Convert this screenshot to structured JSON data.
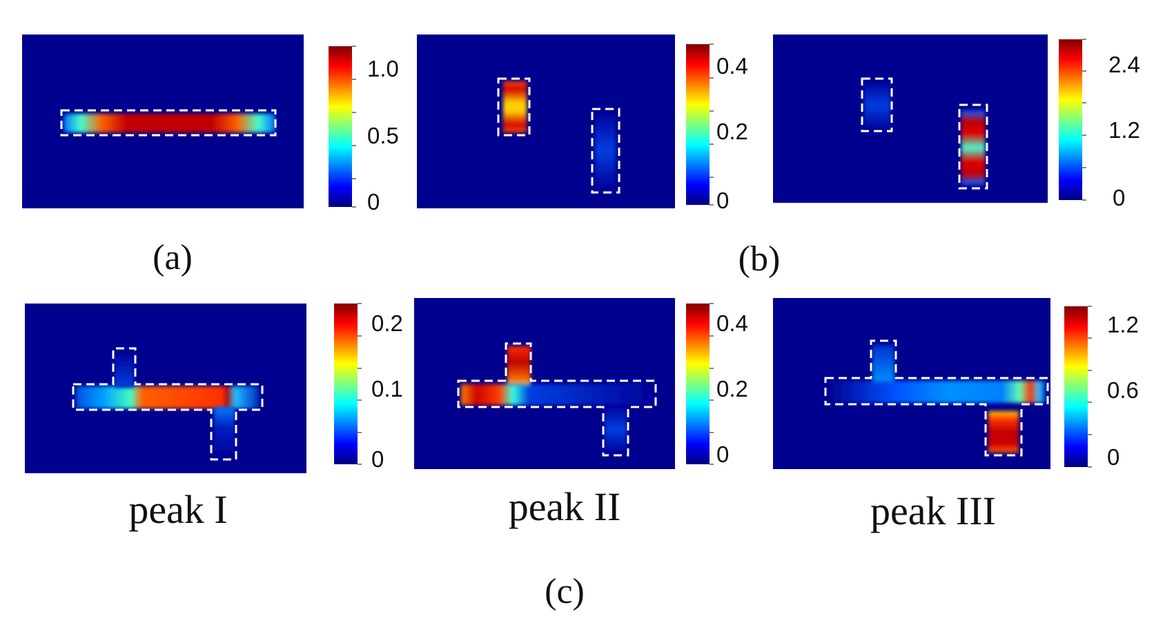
{
  "colormap": [
    "#00007f",
    "#0000ff",
    "#007fff",
    "#00ffff",
    "#7fff7f",
    "#ffff00",
    "#ff7f00",
    "#ff0000",
    "#7f0000"
  ],
  "colors": {
    "background": "#00008f",
    "dashed_outline": "#ffffff"
  },
  "captions": {
    "a": "(a)",
    "b": "(b)",
    "c": "(c)"
  },
  "chart_data": [
    {
      "type": "heatmap",
      "id": "a",
      "colorbar": {
        "ticks": [
          "1.0",
          "0.5",
          "0"
        ],
        "range": [
          0,
          1.2
        ]
      }
    },
    {
      "type": "heatmap",
      "id": "b1",
      "colorbar": {
        "ticks": [
          "0.4",
          "0.2",
          "0"
        ],
        "range": [
          0,
          0.48
        ]
      }
    },
    {
      "type": "heatmap",
      "id": "b2",
      "colorbar": {
        "ticks": [
          "2.4",
          "1.2",
          "0"
        ],
        "range": [
          0,
          2.85
        ]
      }
    },
    {
      "type": "heatmap",
      "id": "c1",
      "caption": "peak I",
      "colorbar": {
        "ticks": [
          "0.2",
          "0.1",
          "0"
        ],
        "range": [
          0,
          0.23
        ]
      }
    },
    {
      "type": "heatmap",
      "id": "c2",
      "caption": "peak II",
      "colorbar": {
        "ticks": [
          "0.4",
          "0.2",
          "0"
        ],
        "range": [
          0,
          0.48
        ]
      }
    },
    {
      "type": "heatmap",
      "id": "c3",
      "caption": "peak III",
      "colorbar": {
        "ticks": [
          "1.2",
          "0.6",
          "0"
        ],
        "range": [
          0,
          1.45
        ]
      }
    }
  ]
}
